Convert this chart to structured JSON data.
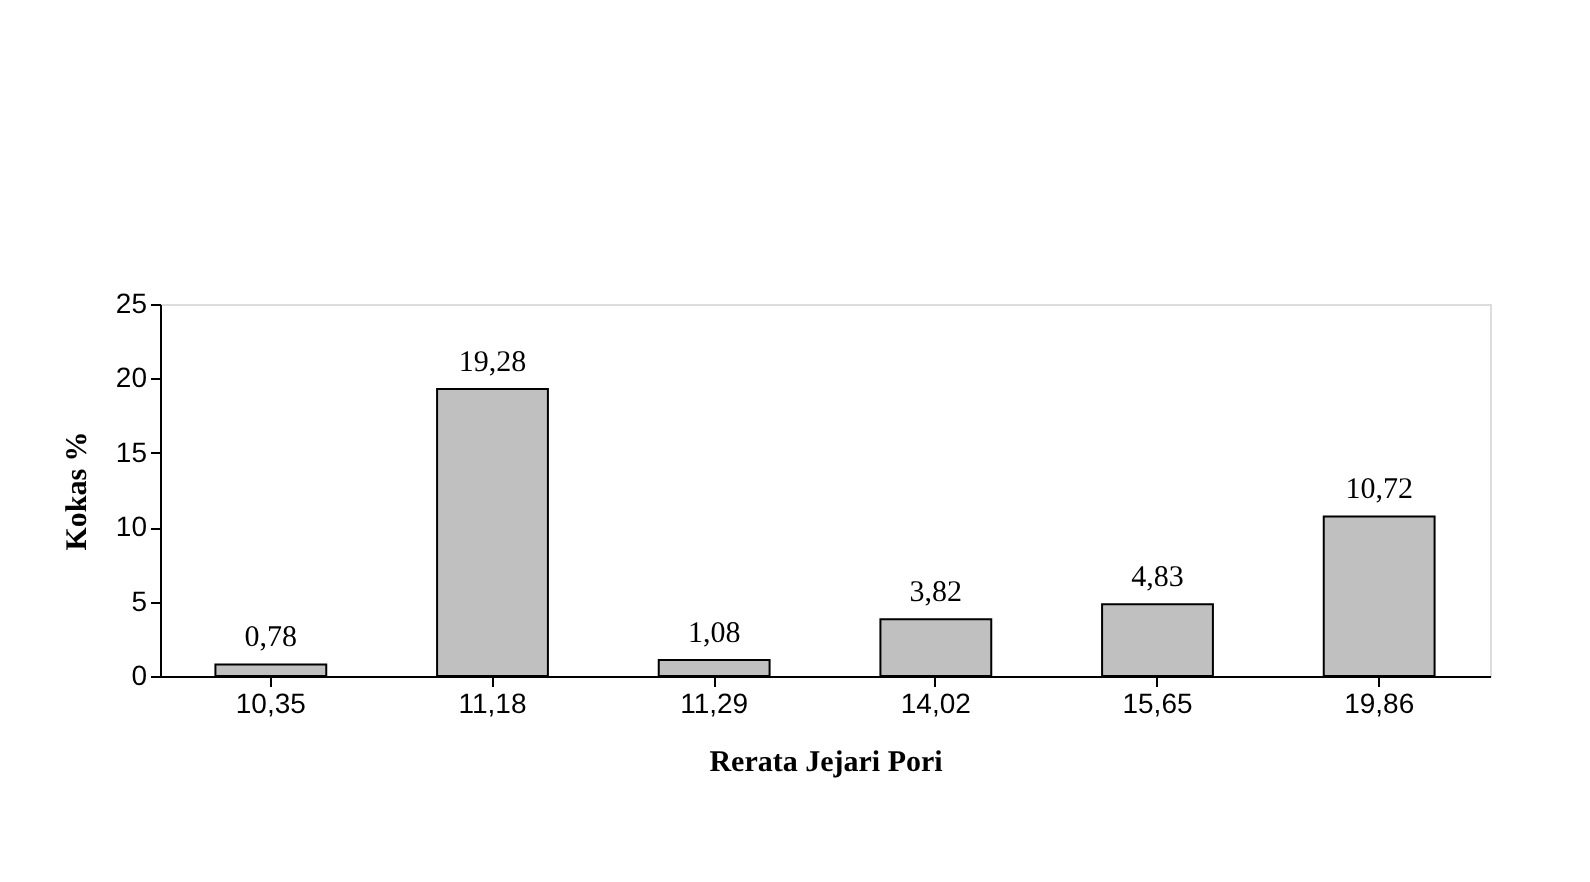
{
  "chart_data": {
    "type": "bar",
    "xlabel": "Rerata Jejari Pori",
    "ylabel": "Kokas %",
    "categories": [
      "10,35",
      "11,18",
      "11,29",
      "14,02",
      "15,65",
      "19,86"
    ],
    "values": [
      0.78,
      19.28,
      1.08,
      3.82,
      4.83,
      10.72
    ],
    "value_labels": [
      "0,78",
      "19,28",
      "1,08",
      "3,82",
      "4,83",
      "10,72"
    ],
    "color": "#c0c0c0",
    "ylim": [
      0,
      25
    ],
    "yticks": [
      0,
      5,
      10,
      15,
      20,
      25
    ],
    "grid": false
  }
}
